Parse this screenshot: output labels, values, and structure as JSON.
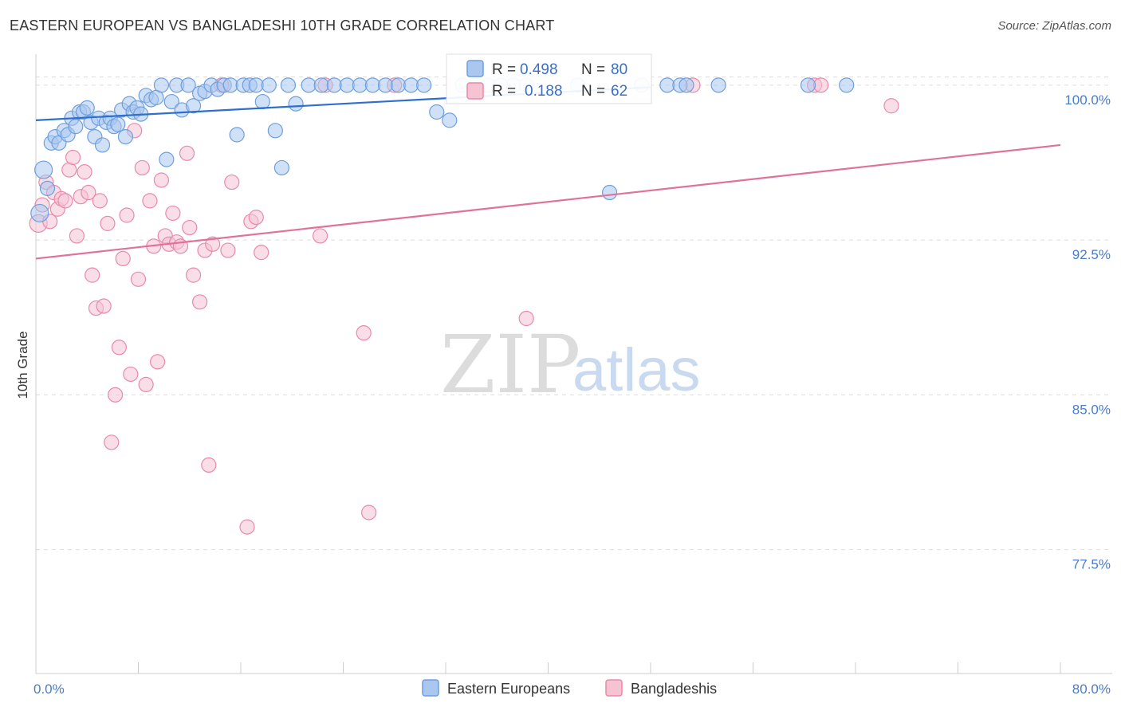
{
  "title": "EASTERN EUROPEAN VS BANGLADESHI 10TH GRADE CORRELATION CHART",
  "source": "Source: ZipAtlas.com",
  "watermark": {
    "zip": "ZIP",
    "atlas": "atlas"
  },
  "colors": {
    "blue_fill": "#a9c7ef",
    "blue_stroke": "#6f9fdd",
    "blue_line": "#2f6fcf",
    "pink_fill": "#f6c3d3",
    "pink_stroke": "#e88aa8",
    "pink_line": "#e0729a",
    "grid": "#dddddd",
    "axis_text": "#4a7cc9"
  },
  "legend": {
    "series": [
      {
        "r_label": "R =",
        "r_value": "0.498",
        "n_label": "N =",
        "n_value": "80"
      },
      {
        "r_label": "R =",
        "r_value": "0.188",
        "n_label": "N =",
        "n_value": "62"
      }
    ]
  },
  "chart_data": {
    "type": "scatter",
    "title": "EASTERN EUROPEAN VS BANGLADESHI 10TH GRADE CORRELATION CHART",
    "xlabel": "",
    "ylabel": "10th Grade",
    "xlim": [
      0,
      80
    ],
    "ylim": [
      71.5,
      101.5
    ],
    "x_tick_labels": [
      "0.0%",
      "80.0%"
    ],
    "y_ticks": [
      100.0,
      92.5,
      85.0,
      77.5
    ],
    "y_tick_labels": [
      "100.0%",
      "92.5%",
      "85.0%",
      "77.5%"
    ],
    "legend_position": "bottom",
    "series": [
      {
        "name": "Eastern Europeans",
        "r": 0.498,
        "n": 80,
        "trend": {
          "x0": 0,
          "y0": 98.3,
          "x1": 48,
          "y1": 99.9
        },
        "points": [
          [
            0.3,
            93.8
          ],
          [
            0.6,
            95.9
          ],
          [
            0.9,
            95.0
          ],
          [
            1.2,
            97.2
          ],
          [
            1.5,
            97.5
          ],
          [
            1.8,
            97.2
          ],
          [
            2.2,
            97.8
          ],
          [
            2.5,
            97.6
          ],
          [
            2.8,
            98.4
          ],
          [
            3.1,
            98.0
          ],
          [
            3.4,
            98.7
          ],
          [
            3.7,
            98.7
          ],
          [
            4.0,
            98.9
          ],
          [
            4.3,
            98.2
          ],
          [
            4.6,
            97.5
          ],
          [
            4.9,
            98.4
          ],
          [
            5.2,
            97.1
          ],
          [
            5.5,
            98.2
          ],
          [
            5.8,
            98.4
          ],
          [
            6.1,
            98.0
          ],
          [
            6.4,
            98.1
          ],
          [
            6.7,
            98.8
          ],
          [
            7.0,
            97.5
          ],
          [
            7.3,
            99.1
          ],
          [
            7.6,
            98.7
          ],
          [
            7.9,
            98.9
          ],
          [
            8.2,
            98.6
          ],
          [
            8.6,
            99.5
          ],
          [
            9.0,
            99.3
          ],
          [
            9.4,
            99.4
          ],
          [
            9.8,
            100.0
          ],
          [
            10.2,
            96.4
          ],
          [
            10.6,
            99.2
          ],
          [
            11.0,
            100.0
          ],
          [
            11.4,
            98.8
          ],
          [
            11.9,
            100.0
          ],
          [
            12.3,
            99.0
          ],
          [
            12.8,
            99.6
          ],
          [
            13.2,
            99.7
          ],
          [
            13.7,
            100.0
          ],
          [
            14.2,
            99.8
          ],
          [
            14.7,
            100.0
          ],
          [
            15.2,
            100.0
          ],
          [
            15.7,
            97.6
          ],
          [
            16.2,
            100.0
          ],
          [
            16.7,
            100.0
          ],
          [
            17.2,
            100.0
          ],
          [
            17.7,
            99.2
          ],
          [
            18.2,
            100.0
          ],
          [
            18.7,
            97.8
          ],
          [
            19.2,
            96.0
          ],
          [
            19.7,
            100.0
          ],
          [
            20.3,
            99.1
          ],
          [
            21.3,
            100.0
          ],
          [
            22.3,
            100.0
          ],
          [
            23.3,
            100.0
          ],
          [
            24.3,
            100.0
          ],
          [
            25.3,
            100.0
          ],
          [
            26.3,
            100.0
          ],
          [
            27.3,
            100.0
          ],
          [
            28.3,
            100.0
          ],
          [
            29.3,
            100.0
          ],
          [
            30.3,
            100.0
          ],
          [
            31.3,
            98.7
          ],
          [
            32.3,
            98.3
          ],
          [
            33.3,
            100.0
          ],
          [
            34.3,
            100.0
          ],
          [
            35.3,
            100.0
          ],
          [
            36.3,
            100.0
          ],
          [
            37.3,
            100.0
          ],
          [
            38.3,
            100.0
          ],
          [
            42.3,
            100.0
          ],
          [
            44.8,
            94.8
          ],
          [
            47.3,
            100.0
          ],
          [
            49.3,
            100.0
          ],
          [
            50.3,
            100.0
          ],
          [
            50.8,
            100.0
          ],
          [
            53.3,
            100.0
          ],
          [
            60.3,
            100.0
          ],
          [
            63.3,
            100.0
          ]
        ]
      },
      {
        "name": "Bangladeshis",
        "r": 0.188,
        "n": 62,
        "trend": {
          "x0": 0,
          "y0": 91.6,
          "x1": 80,
          "y1": 97.1
        },
        "points": [
          [
            0.2,
            93.3
          ],
          [
            0.5,
            94.2
          ],
          [
            0.8,
            95.3
          ],
          [
            1.1,
            93.4
          ],
          [
            1.4,
            94.8
          ],
          [
            1.7,
            94.0
          ],
          [
            2.0,
            94.5
          ],
          [
            2.3,
            94.4
          ],
          [
            2.6,
            95.9
          ],
          [
            2.9,
            96.5
          ],
          [
            3.2,
            92.7
          ],
          [
            3.5,
            94.6
          ],
          [
            3.8,
            95.8
          ],
          [
            4.1,
            94.8
          ],
          [
            4.4,
            90.8
          ],
          [
            4.7,
            89.2
          ],
          [
            5.0,
            94.4
          ],
          [
            5.3,
            89.3
          ],
          [
            5.6,
            93.3
          ],
          [
            5.9,
            82.7
          ],
          [
            6.2,
            85.0
          ],
          [
            6.5,
            87.3
          ],
          [
            6.8,
            91.6
          ],
          [
            7.1,
            93.7
          ],
          [
            7.4,
            86.0
          ],
          [
            7.7,
            97.8
          ],
          [
            8.0,
            90.6
          ],
          [
            8.3,
            96.0
          ],
          [
            8.6,
            85.5
          ],
          [
            8.9,
            94.4
          ],
          [
            9.2,
            92.2
          ],
          [
            9.5,
            86.6
          ],
          [
            9.8,
            95.4
          ],
          [
            10.1,
            92.7
          ],
          [
            10.4,
            92.3
          ],
          [
            10.7,
            93.8
          ],
          [
            11.0,
            92.4
          ],
          [
            11.3,
            92.2
          ],
          [
            11.8,
            96.7
          ],
          [
            12.0,
            93.1
          ],
          [
            12.3,
            90.8
          ],
          [
            12.8,
            89.5
          ],
          [
            13.2,
            92.0
          ],
          [
            13.5,
            81.6
          ],
          [
            13.8,
            92.3
          ],
          [
            14.5,
            100.0
          ],
          [
            15.0,
            92.0
          ],
          [
            15.3,
            95.3
          ],
          [
            16.5,
            78.6
          ],
          [
            16.8,
            93.4
          ],
          [
            17.2,
            93.6
          ],
          [
            17.6,
            91.9
          ],
          [
            22.2,
            92.7
          ],
          [
            22.6,
            100.0
          ],
          [
            25.6,
            88.0
          ],
          [
            26.0,
            79.3
          ],
          [
            28.0,
            100.0
          ],
          [
            38.3,
            88.7
          ],
          [
            51.3,
            100.0
          ],
          [
            60.8,
            100.0
          ],
          [
            61.3,
            100.0
          ],
          [
            66.8,
            99.0
          ]
        ]
      }
    ]
  }
}
